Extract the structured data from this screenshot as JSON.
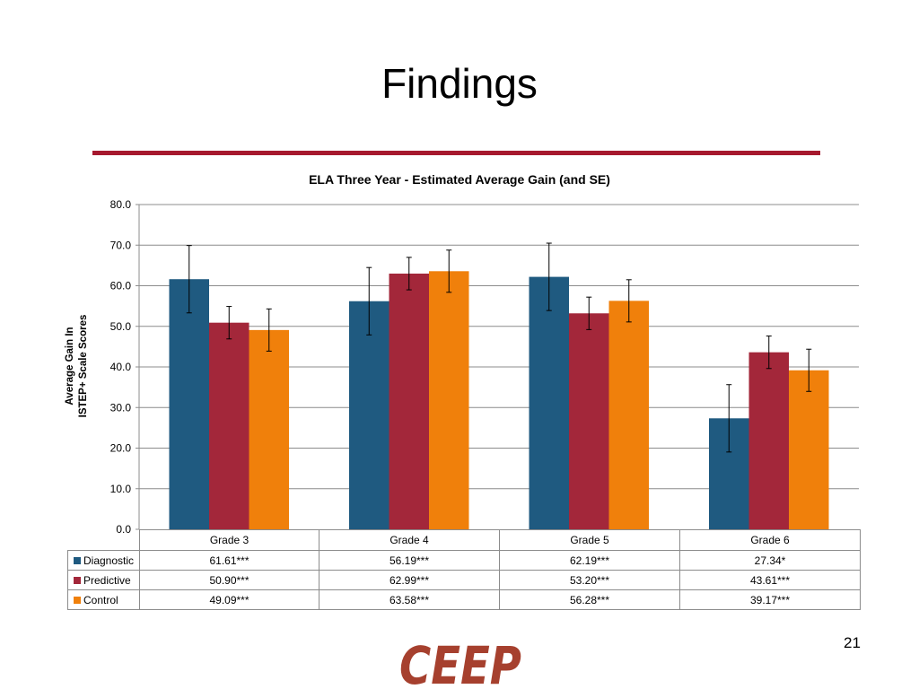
{
  "slide": {
    "title": "Findings",
    "slide_number": "21",
    "rule_color": "#a6192e",
    "logo_text": "CEEP",
    "logo_color": "#a6402e"
  },
  "chart_data": {
    "type": "bar",
    "title": "ELA Three Year - Estimated Average Gain (and SE)",
    "ylabel_lines": [
      "Average Gain In",
      "ISTEP+ Scale Scores"
    ],
    "xlabel": "",
    "ylim": [
      0,
      80
    ],
    "yticks": [
      "0.0",
      "10.0",
      "20.0",
      "30.0",
      "40.0",
      "50.0",
      "60.0",
      "70.0",
      "80.0"
    ],
    "grid": true,
    "legend": "data-table",
    "categories": [
      "Grade 3",
      "Grade 4",
      "Grade 5",
      "Grade 6"
    ],
    "series": [
      {
        "name": "Diagnostic",
        "color": "#1f5a80",
        "values": [
          61.61,
          56.19,
          62.19,
          27.34
        ],
        "error_bars": [
          8.3,
          8.3,
          8.3,
          8.3
        ],
        "table_labels": [
          "61.61***",
          "56.19***",
          "62.19***",
          "27.34*"
        ]
      },
      {
        "name": "Predictive",
        "color": "#a3273a",
        "values": [
          50.9,
          62.99,
          53.2,
          43.61
        ],
        "error_bars": [
          4.0,
          4.0,
          4.0,
          4.0
        ],
        "table_labels": [
          "50.90***",
          "62.99***",
          "53.20***",
          "43.61***"
        ]
      },
      {
        "name": "Control",
        "color": "#f0800b",
        "values": [
          49.09,
          63.58,
          56.28,
          39.17
        ],
        "error_bars": [
          5.2,
          5.2,
          5.2,
          5.2
        ],
        "table_labels": [
          "49.09***",
          "63.58***",
          "56.28***",
          "39.17***"
        ]
      }
    ]
  }
}
